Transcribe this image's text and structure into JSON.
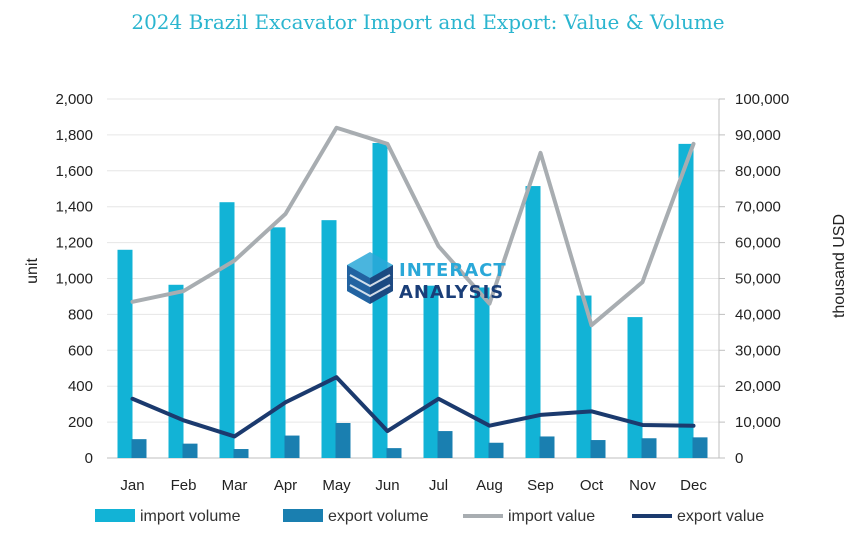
{
  "chart_data": {
    "type": "bar",
    "title": "2024 Brazil Excavator Import and Export: Value & Volume",
    "categories": [
      "Jan",
      "Feb",
      "Mar",
      "Apr",
      "May",
      "Jun",
      "Jul",
      "Aug",
      "Sep",
      "Oct",
      "Nov",
      "Dec"
    ],
    "ylabel_left": "unit",
    "ylabel_right": "thousand USD",
    "ylim_left": [
      0,
      2000
    ],
    "ylim_right": [
      0,
      100000
    ],
    "yticks_left": [
      "0",
      "200",
      "400",
      "600",
      "800",
      "1,000",
      "1,200",
      "1,400",
      "1,600",
      "1,800",
      "2,000"
    ],
    "yticks_right": [
      "0",
      "10,000",
      "20,000",
      "30,000",
      "40,000",
      "50,000",
      "60,000",
      "70,000",
      "80,000",
      "90,000",
      "100,000"
    ],
    "grid": true,
    "legend_position": "bottom",
    "series": [
      {
        "name": "import volume",
        "type": "bar",
        "axis": "left",
        "color": "#12b3d6",
        "values": [
          1160,
          965,
          1425,
          1285,
          1325,
          1755,
          960,
          950,
          1515,
          905,
          785,
          1750
        ]
      },
      {
        "name": "export volume",
        "type": "bar",
        "axis": "left",
        "color": "#1a7fb0",
        "values": [
          105,
          80,
          50,
          125,
          195,
          55,
          150,
          85,
          120,
          100,
          110,
          115
        ]
      },
      {
        "name": "import value",
        "type": "line",
        "axis": "right",
        "color": "#a8adb1",
        "values": [
          43500,
          46500,
          55000,
          68000,
          92000,
          87500,
          59000,
          43000,
          85000,
          37000,
          49000,
          87500
        ]
      },
      {
        "name": "export value",
        "type": "line",
        "axis": "right",
        "color": "#1b3a6e",
        "values": [
          16500,
          10500,
          6000,
          15500,
          22500,
          7500,
          16500,
          9000,
          12000,
          13000,
          9200,
          9000
        ]
      }
    ]
  },
  "watermark": {
    "line1": "INTERACT",
    "line2": "ANALYSIS"
  }
}
